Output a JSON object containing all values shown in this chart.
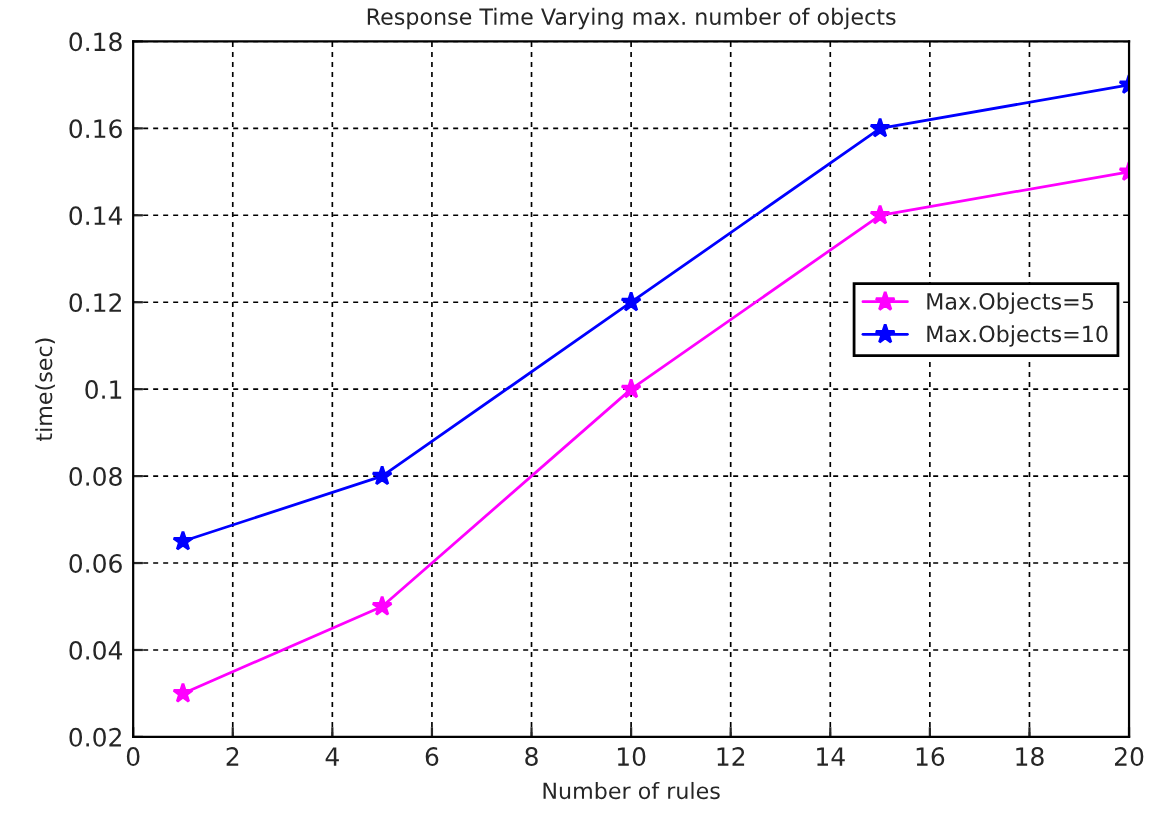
{
  "chart_data": {
    "type": "line",
    "title": "Response Time Varying max. number of objects",
    "xlabel": "Number of rules",
    "ylabel": "time(sec)",
    "x": [
      1,
      5,
      10,
      15,
      20
    ],
    "series": [
      {
        "name": "Max.Objects=5",
        "color": "#ff00ff",
        "values": [
          0.03,
          0.05,
          0.1,
          0.14,
          0.15
        ]
      },
      {
        "name": "Max.Objects=10",
        "color": "#0000ff",
        "values": [
          0.065,
          0.08,
          0.12,
          0.16,
          0.17
        ]
      }
    ],
    "xlim": [
      0,
      20
    ],
    "xticks": [
      0,
      2,
      4,
      6,
      8,
      10,
      12,
      14,
      16,
      18,
      20
    ],
    "ylim": [
      0.02,
      0.18
    ],
    "yticks": [
      0.02,
      0.04,
      0.06,
      0.08,
      0.1,
      0.12,
      0.14,
      0.16,
      0.18
    ],
    "grid": true,
    "legend": "right",
    "marker": "star",
    "line_style": "solid"
  }
}
